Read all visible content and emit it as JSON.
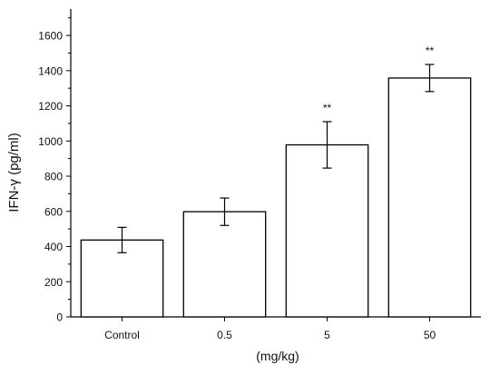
{
  "chart_data": {
    "type": "bar",
    "title": "",
    "xlabel": "(mg/kg)",
    "ylabel": "IFN-γ (pg/ml)",
    "ylim": [
      0,
      1750
    ],
    "yticks": [
      0,
      200,
      400,
      600,
      800,
      1000,
      1200,
      1400,
      1600
    ],
    "categories": [
      "Control",
      "0.5",
      "5",
      "50"
    ],
    "values": [
      437,
      598,
      978,
      1358
    ],
    "errors": [
      72,
      78,
      132,
      77
    ],
    "annotations": [
      "",
      "",
      "**",
      "**"
    ],
    "grid": false,
    "bar_fill": "#ffffff",
    "bar_stroke": "#000000"
  }
}
